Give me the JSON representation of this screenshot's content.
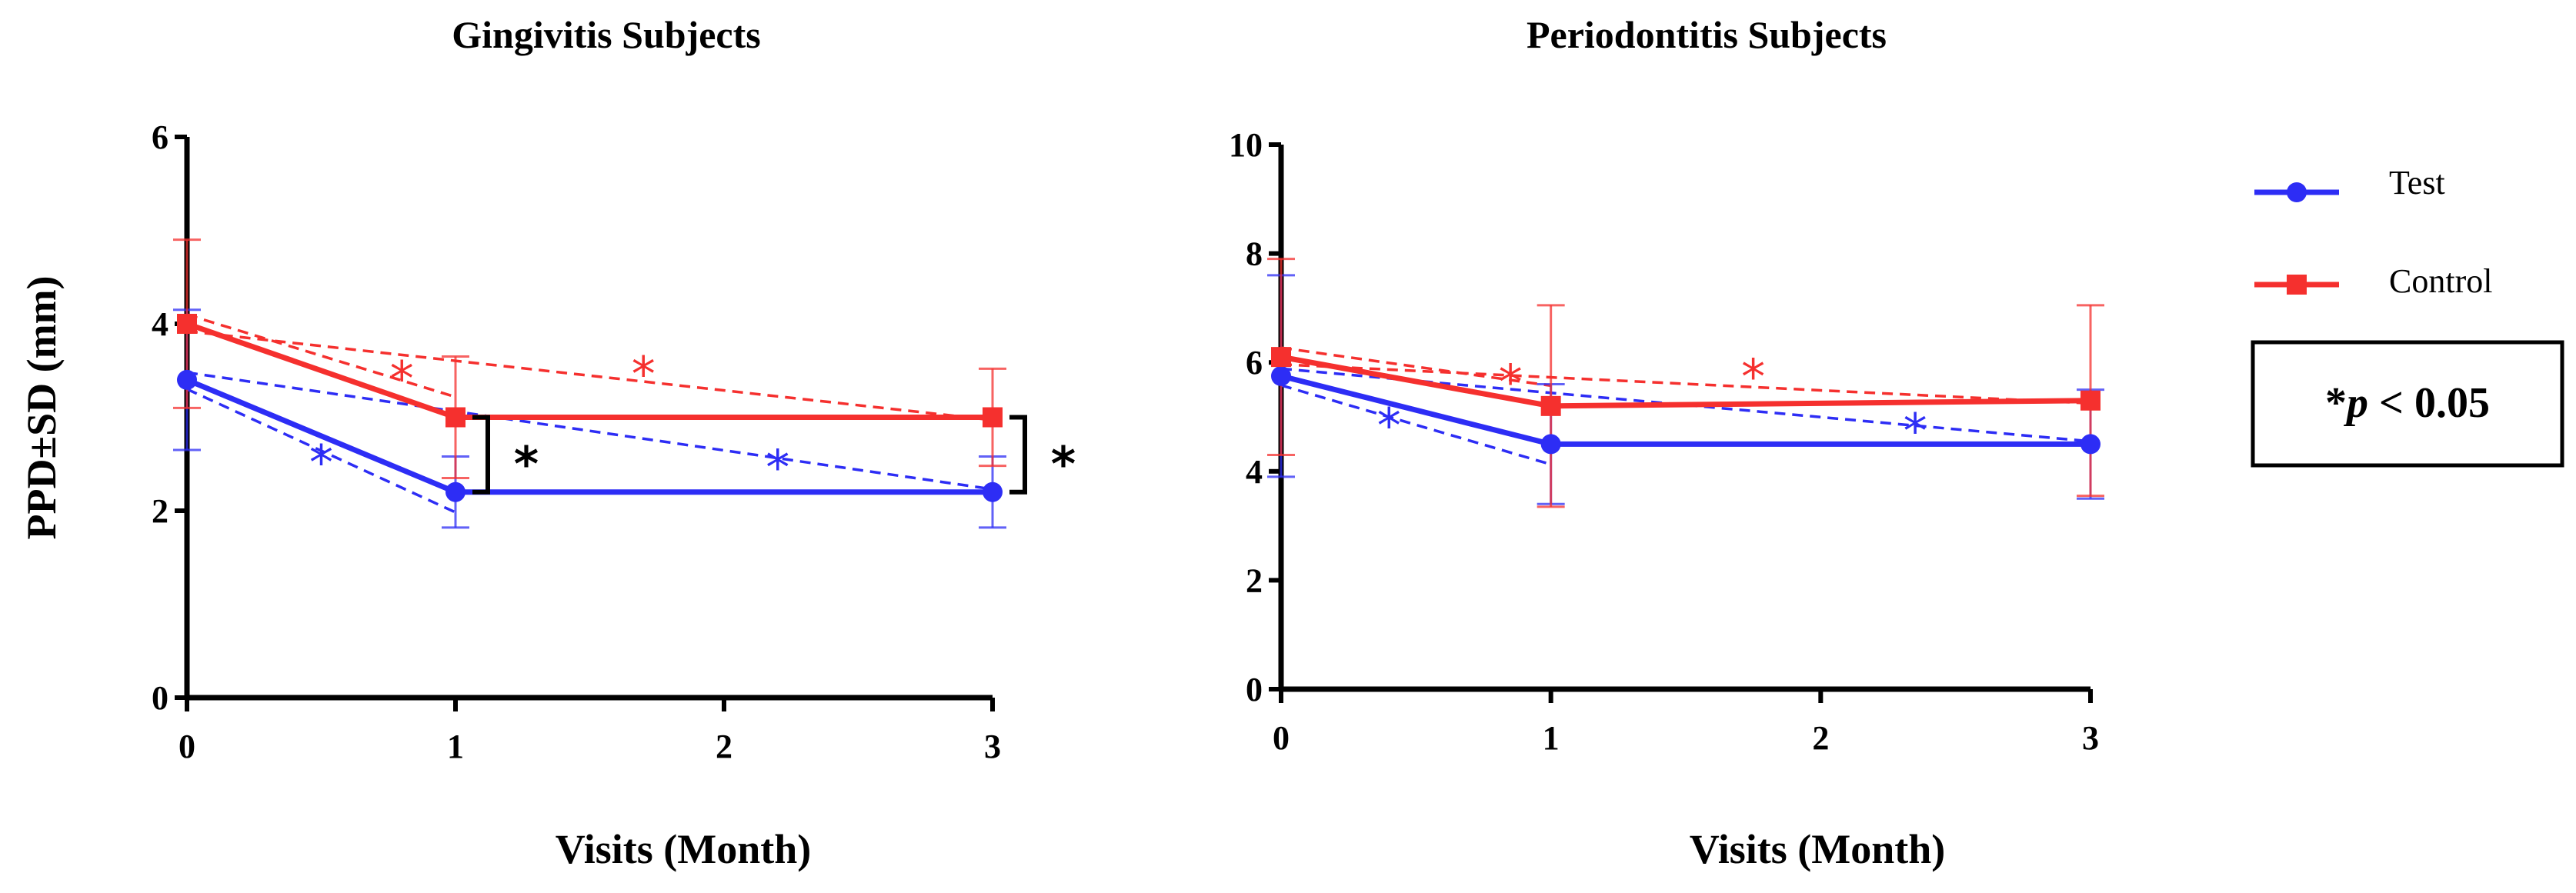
{
  "chart_data": [
    {
      "type": "line",
      "title": "Gingivitis Subjects",
      "xlabel": "Visits (Month)",
      "ylabel": "PPD±SD (mm)",
      "x_ticks": [
        "0",
        "1",
        "2",
        "3"
      ],
      "y_ticks": [
        "0",
        "2",
        "4",
        "6"
      ],
      "xlim": [
        0,
        3
      ],
      "ylim": [
        0,
        6
      ],
      "series": [
        {
          "name": "Test",
          "x": [
            0,
            1,
            3
          ],
          "values": [
            3.4,
            2.2,
            2.2
          ],
          "sd": [
            0.75,
            0.38,
            0.38
          ],
          "color": "#2d2df5"
        },
        {
          "name": "Control",
          "x": [
            0,
            1,
            3
          ],
          "values": [
            4.0,
            3.0,
            3.0
          ],
          "sd": [
            0.9,
            0.65,
            0.52
          ],
          "color": "#f5302e"
        }
      ],
      "significance": [
        {
          "x": 1,
          "label": "*"
        },
        {
          "x": 3,
          "label": "*"
        }
      ],
      "pairwise_marks": [
        {
          "series": "Test",
          "x": 0.5,
          "y": 2.55,
          "label": "*"
        },
        {
          "series": "Test",
          "x": 2.2,
          "y": 2.5,
          "label": "*"
        },
        {
          "series": "Control",
          "x": 0.8,
          "y": 3.45,
          "label": "*"
        },
        {
          "series": "Control",
          "x": 1.7,
          "y": 3.5,
          "label": "*"
        }
      ]
    },
    {
      "type": "line",
      "title": "Periodontitis Subjects",
      "xlabel": "Visits (Month)",
      "ylabel": "",
      "x_ticks": [
        "0",
        "1",
        "2",
        "3"
      ],
      "y_ticks": [
        "0",
        "2",
        "4",
        "6",
        "8",
        "10"
      ],
      "xlim": [
        0,
        3
      ],
      "ylim": [
        0,
        10
      ],
      "series": [
        {
          "name": "Test",
          "x": [
            0,
            1,
            3
          ],
          "values": [
            5.75,
            4.5,
            4.5
          ],
          "sd": [
            1.85,
            1.1,
            1.0
          ],
          "color": "#2d2df5"
        },
        {
          "name": "Control",
          "x": [
            0,
            1,
            3
          ],
          "values": [
            6.1,
            5.2,
            5.3
          ],
          "sd": [
            1.8,
            1.85,
            1.75
          ],
          "color": "#f5302e"
        }
      ],
      "pairwise_marks": [
        {
          "series": "Test",
          "x": 0.4,
          "y": 4.9,
          "label": "*"
        },
        {
          "series": "Test",
          "x": 2.35,
          "y": 4.8,
          "label": "*"
        },
        {
          "series": "Control",
          "x": 0.85,
          "y": 5.7,
          "label": "*"
        },
        {
          "series": "Control",
          "x": 1.75,
          "y": 5.8,
          "label": "*"
        }
      ]
    }
  ],
  "legend": {
    "items": [
      {
        "label": "Test",
        "color": "#2d2df5",
        "marker": "circle"
      },
      {
        "label": "Control",
        "color": "#f5302e",
        "marker": "square"
      }
    ],
    "placement": "right"
  },
  "significance_box": {
    "star": "*",
    "p_symbol": "p",
    "rest": " < 0.05"
  },
  "colors": {
    "test": "#2d2df5",
    "control": "#f5302e",
    "axis": "#000000"
  }
}
